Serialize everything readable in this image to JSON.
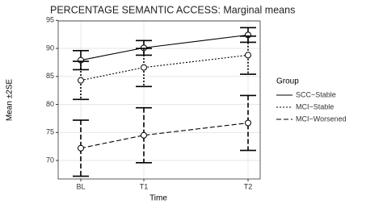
{
  "chart_data": {
    "type": "line",
    "title": "PERCENTAGE SEMANTIC ACCESS: Marginal means",
    "x_label": "Time",
    "y_label": "Mean ±2SE",
    "categories": [
      "BL",
      "T1",
      "T2"
    ],
    "legend_title": "Group",
    "series": [
      {
        "name": "SCC−Stable",
        "color": "#000000",
        "dash": "solid",
        "values": [
          87.9,
          90.1,
          92.4
        ],
        "errors": [
          1.7,
          1.3,
          1.3
        ]
      },
      {
        "name": "MCI−Stable",
        "color": "#000000",
        "dash": "dotted",
        "values": [
          84.3,
          86.6,
          88.8
        ],
        "errors": [
          3.4,
          3.4,
          3.4
        ]
      },
      {
        "name": "MCI−Worsened",
        "color": "#000000",
        "dash": "dashed",
        "values": [
          72.2,
          74.5,
          76.7
        ],
        "errors": [
          5.0,
          4.9,
          4.9
        ]
      }
    ],
    "ylim": [
      66.7,
      94.9
    ],
    "yticks": [
      70,
      75,
      80,
      85,
      90,
      95
    ],
    "grid": true,
    "legend": "right"
  }
}
